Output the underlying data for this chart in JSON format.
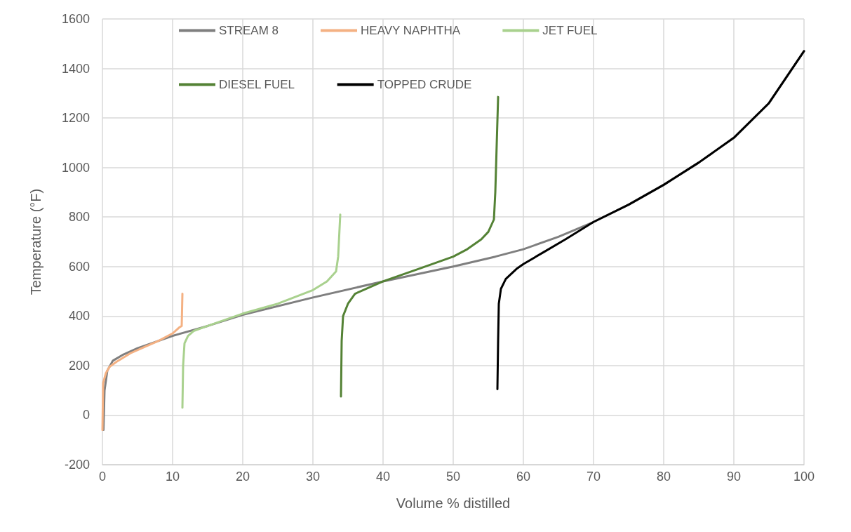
{
  "chart_data": {
    "type": "line",
    "xlabel": "Volume % distilled",
    "ylabel": "Temperature (°F)",
    "xlim": [
      0,
      100
    ],
    "xticks": [
      0,
      10,
      20,
      30,
      40,
      50,
      60,
      70,
      80,
      90,
      100
    ],
    "ylim": [
      -200,
      1600
    ],
    "yticks": [
      -200,
      0,
      200,
      400,
      600,
      800,
      1000,
      1200,
      1400,
      1600
    ],
    "grid": true,
    "legend": "top",
    "marker": "none",
    "line_style": "solid",
    "series": [
      {
        "name": "STREAM 8",
        "color": "#7f7f7f",
        "x": [
          0.15,
          0.3,
          0.7,
          1.5,
          3,
          5,
          10,
          15,
          20,
          30,
          40,
          50,
          56,
          60,
          65,
          70,
          75,
          80,
          85,
          90,
          95,
          100
        ],
        "values": [
          -60,
          100,
          180,
          220,
          245,
          270,
          320,
          360,
          405,
          475,
          540,
          600,
          640,
          670,
          720,
          780,
          850,
          930,
          1020,
          1120,
          1260,
          1470
        ]
      },
      {
        "name": "HEAVY NAPHTHA",
        "color": "#f4b183",
        "x": [
          0,
          0.1,
          0.5,
          1,
          2,
          4,
          6,
          8,
          10,
          11,
          11.3,
          11.4
        ],
        "values": [
          -60,
          130,
          170,
          195,
          215,
          250,
          275,
          300,
          330,
          355,
          360,
          490
        ]
      },
      {
        "name": "JET FUEL",
        "color": "#a9d18e",
        "x": [
          11.4,
          11.5,
          11.7,
          12.2,
          13,
          15,
          20,
          25,
          30,
          32,
          33.3,
          33.6,
          33.9
        ],
        "values": [
          30,
          200,
          290,
          320,
          340,
          360,
          410,
          450,
          505,
          540,
          580,
          640,
          810
        ]
      },
      {
        "name": "DIESEL FUEL",
        "color": "#548235",
        "x": [
          34,
          34.1,
          34.3,
          35,
          36,
          40,
          45,
          50,
          52,
          54,
          55,
          55.8,
          56,
          56.4
        ],
        "values": [
          75,
          300,
          400,
          450,
          490,
          540,
          590,
          640,
          670,
          710,
          740,
          790,
          900,
          1285
        ]
      },
      {
        "name": "TOPPED CRUDE",
        "color": "#000000",
        "x": [
          56.3,
          56.4,
          56.5,
          56.8,
          57.5,
          59,
          60,
          63,
          66,
          70,
          75,
          80,
          85,
          90,
          95,
          100
        ],
        "values": [
          105,
          300,
          450,
          510,
          550,
          590,
          610,
          660,
          710,
          780,
          850,
          930,
          1020,
          1120,
          1260,
          1470
        ]
      }
    ]
  }
}
